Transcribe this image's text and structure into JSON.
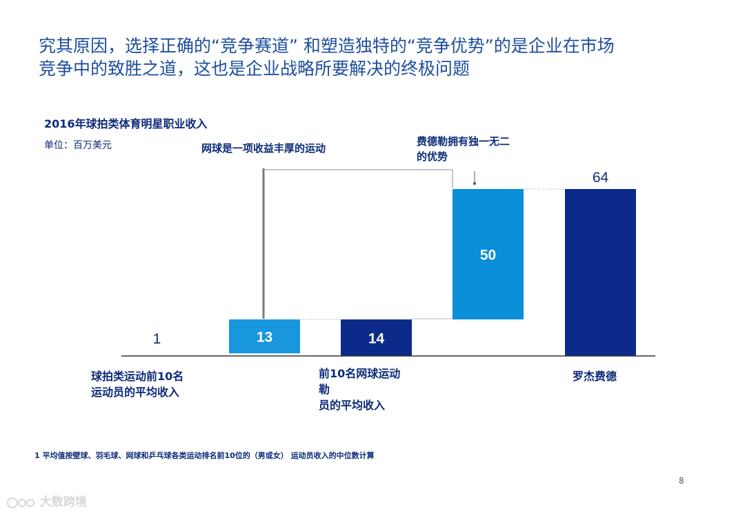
{
  "heading": {
    "line1": "究其原因，选择正确的“竞争赛道” 和塑造独特的“竞争优势”的是企业在市场",
    "line2": "竞争中的致胜之道，这也是企业战略所要解决的终极问题"
  },
  "annotations": {
    "tennis": "网球是一项收益丰厚的运动",
    "federer_line1": "费德勒拥有独一无二",
    "federer_line2": "的优势"
  },
  "chart_data": {
    "type": "bar",
    "subtype": "waterfall",
    "title": "2016年球拍类体育明星职业收入",
    "unit": "单位：百万美元",
    "categories": [
      [
        "球拍类运动前10名",
        "运动员的平均收入"
      ],
      [
        ""
      ],
      [
        "前10名网球运动",
        "勒",
        "员的平均收入"
      ],
      [
        ""
      ],
      [
        "罗杰费德"
      ]
    ],
    "values": [
      1,
      13,
      14,
      50,
      64
    ],
    "value_labels": [
      "1",
      "13",
      "14",
      "50",
      "64"
    ],
    "bases": [
      0,
      1,
      0,
      14,
      0
    ],
    "kinds": [
      "total",
      "increment",
      "total",
      "increment",
      "total"
    ],
    "ylim": [
      0,
      70
    ],
    "colors": {
      "total": "#0b2a8a",
      "increment": "#0a8fd8",
      "increment_light": "#1896de",
      "axis": "#333333",
      "connector": "#bbbbbb",
      "bracket": "#7a7a7a"
    }
  },
  "footnote": "1 平均值按壁球、羽毛球、网球和乒乓球各类运动排名前10位的（男或女） 运动员收入的中位数计算",
  "page_number": "8",
  "watermark": "大数跨境"
}
